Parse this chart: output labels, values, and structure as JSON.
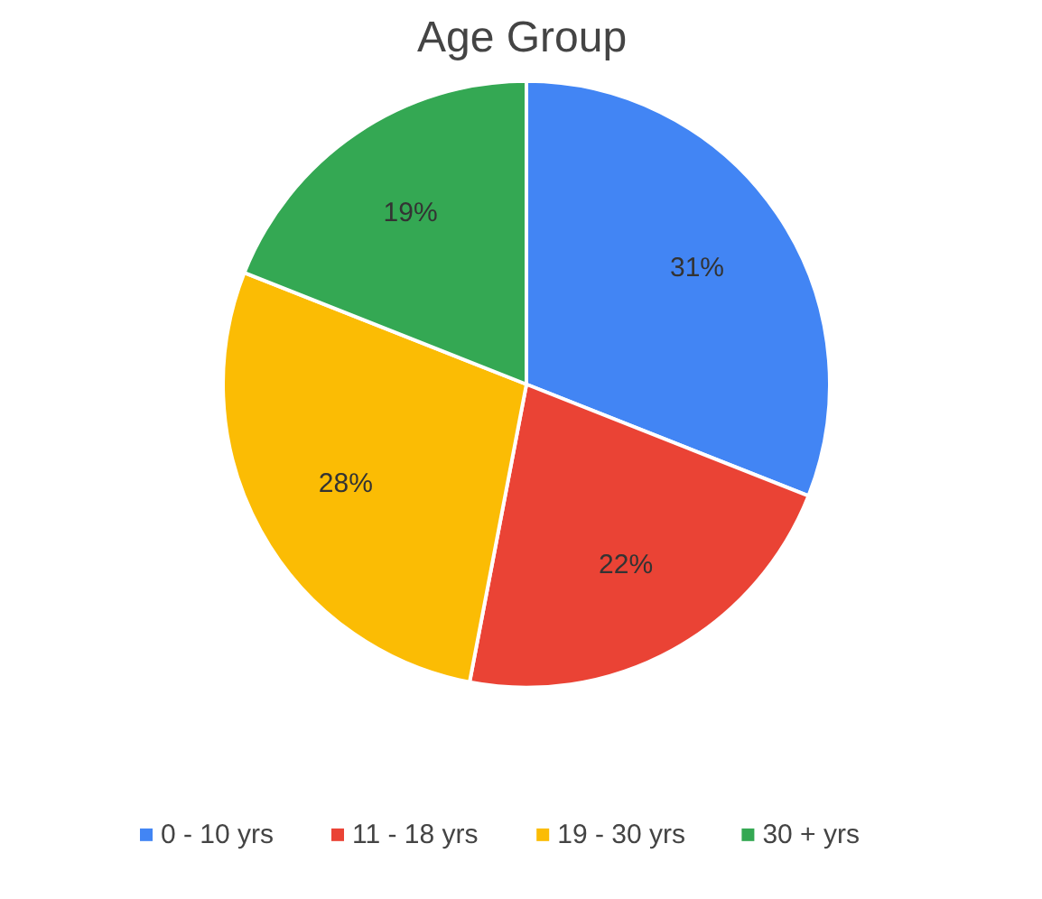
{
  "chart_data": {
    "type": "pie",
    "title": "Age Group",
    "categories": [
      "0 - 10 yrs",
      "11 - 18 yrs",
      "19 - 30 yrs",
      "30 + yrs"
    ],
    "values": [
      31,
      22,
      28,
      19
    ],
    "colors": [
      "#4285f4",
      "#ea4335",
      "#fbbc04",
      "#34a853"
    ],
    "value_labels": [
      "31%",
      "22%",
      "28%",
      "19%"
    ],
    "legend": "bottom"
  }
}
